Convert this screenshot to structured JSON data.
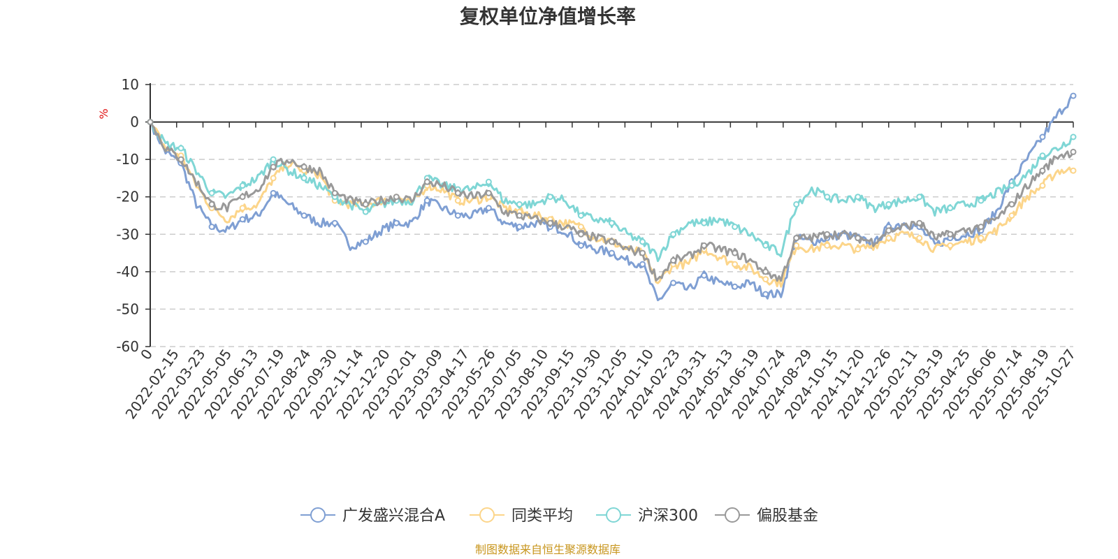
{
  "chart_data": {
    "type": "line",
    "title": "复权单位净值增长率",
    "unit_label": "%",
    "ylim": [
      -60,
      10
    ],
    "y_ticks": [
      10,
      0,
      -10,
      -20,
      -30,
      -40,
      -50,
      -60
    ],
    "x_ticks": [
      "0",
      "2022-02-15",
      "2022-03-23",
      "2022-05-05",
      "2022-06-13",
      "2022-07-19",
      "2022-08-24",
      "2022-09-30",
      "2022-11-14",
      "2022-12-20",
      "2023-02-01",
      "2023-03-09",
      "2023-04-17",
      "2023-05-26",
      "2023-07-05",
      "2023-08-10",
      "2023-09-15",
      "2023-10-30",
      "2023-12-05",
      "2024-01-10",
      "2024-02-23",
      "2024-03-31",
      "2024-05-13",
      "2024-06-19",
      "2024-07-24",
      "2024-08-29",
      "2024-10-15",
      "2024-11-20",
      "2024-12-26",
      "2025-02-11",
      "2025-03-19",
      "2025-04-25",
      "2025-06-06",
      "2025-07-14",
      "2025-08-19",
      "2025-10-27"
    ],
    "grid": "horizontal-dashed",
    "legend_position": "bottom",
    "series": [
      {
        "name": "广发盛兴混合A",
        "color": "#7f9fd3",
        "values": [
          0,
          -8,
          -11,
          -22,
          -28,
          -29,
          -26,
          -25,
          -19,
          -22,
          -25,
          -27,
          -27,
          -33,
          -32,
          -29,
          -27,
          -27,
          -21,
          -23,
          -25,
          -25,
          -23,
          -27,
          -28,
          -27,
          -28,
          -29,
          -33,
          -34,
          -35,
          -37,
          -38,
          -48,
          -43,
          -45,
          -41,
          -43,
          -44,
          -43,
          -46,
          -46,
          -31,
          -32,
          -31,
          -30,
          -31,
          -33,
          -28,
          -27,
          -28,
          -33,
          -31,
          -30,
          -29,
          -24,
          -16,
          -10,
          -4,
          2,
          7
        ]
      },
      {
        "name": "同类平均",
        "color": "#fcd58a",
        "values": [
          0,
          -7,
          -9,
          -17,
          -23,
          -26,
          -23,
          -22,
          -15,
          -11,
          -13,
          -14,
          -21,
          -22,
          -22,
          -21,
          -20,
          -22,
          -17,
          -18,
          -21,
          -21,
          -20,
          -23,
          -24,
          -25,
          -26,
          -27,
          -28,
          -31,
          -32,
          -34,
          -35,
          -43,
          -38,
          -38,
          -34,
          -36,
          -38,
          -39,
          -42,
          -43,
          -33,
          -34,
          -33,
          -33,
          -34,
          -33,
          -31,
          -30,
          -31,
          -34,
          -33,
          -32,
          -31,
          -29,
          -25,
          -20,
          -17,
          -13,
          -13
        ]
      },
      {
        "name": "沪深300",
        "color": "#7fd6d5",
        "values": [
          0,
          -6,
          -7,
          -13,
          -19,
          -20,
          -17,
          -15,
          -10,
          -13,
          -15,
          -17,
          -20,
          -22,
          -24,
          -22,
          -21,
          -21,
          -15,
          -17,
          -18,
          -18,
          -16,
          -21,
          -22,
          -22,
          -20,
          -21,
          -25,
          -26,
          -27,
          -30,
          -32,
          -36,
          -30,
          -27,
          -27,
          -26,
          -28,
          -30,
          -33,
          -35,
          -22,
          -18,
          -20,
          -21,
          -20,
          -23,
          -22,
          -21,
          -20,
          -24,
          -23,
          -22,
          -21,
          -19,
          -17,
          -14,
          -9,
          -7,
          -4
        ]
      },
      {
        "name": "偏股基金",
        "color": "#999999",
        "values": [
          0,
          -7,
          -10,
          -16,
          -22,
          -23,
          -20,
          -18,
          -12,
          -10,
          -12,
          -13,
          -19,
          -21,
          -22,
          -21,
          -20,
          -21,
          -16,
          -17,
          -19,
          -20,
          -19,
          -24,
          -25,
          -26,
          -27,
          -28,
          -30,
          -31,
          -32,
          -34,
          -35,
          -42,
          -37,
          -36,
          -33,
          -34,
          -35,
          -37,
          -40,
          -42,
          -31,
          -31,
          -30,
          -30,
          -31,
          -32,
          -29,
          -28,
          -27,
          -31,
          -30,
          -29,
          -28,
          -26,
          -22,
          -17,
          -13,
          -9,
          -8
        ]
      }
    ]
  },
  "footer": {
    "source": "制图数据来自恒生聚源数据库"
  }
}
